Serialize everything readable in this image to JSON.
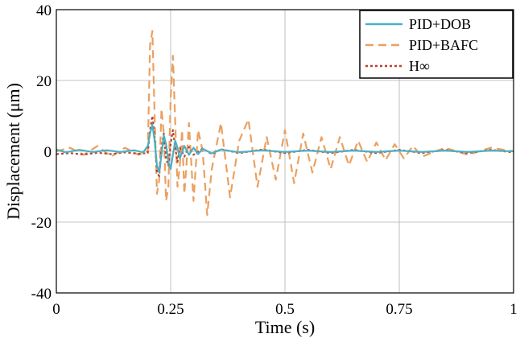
{
  "chart_data": {
    "type": "line",
    "title": "",
    "xlabel": "Time (s)",
    "ylabel": "Displacement  (μm)",
    "xlim": [
      0,
      1
    ],
    "ylim": [
      -40,
      40
    ],
    "x_ticks": [
      0,
      0.25,
      0.5,
      0.75,
      1
    ],
    "x_tick_labels": [
      "0",
      "0.25",
      "0.5",
      "0.75",
      "1"
    ],
    "y_ticks": [
      -40,
      -20,
      0,
      20,
      40
    ],
    "y_tick_labels": [
      "-40",
      "-20",
      "0",
      "20",
      "40"
    ],
    "grid": true,
    "legend_position": "top-right",
    "series": [
      {
        "name": "PID+DOB",
        "color": "#4bb0c4",
        "dash": "solid",
        "points": [
          [
            0,
            0.5
          ],
          [
            0.02,
            -0.3
          ],
          [
            0.05,
            0.4
          ],
          [
            0.08,
            -0.2
          ],
          [
            0.11,
            0.3
          ],
          [
            0.14,
            -0.2
          ],
          [
            0.17,
            0.3
          ],
          [
            0.19,
            -0.3
          ],
          [
            0.2,
            1.5
          ],
          [
            0.205,
            5
          ],
          [
            0.21,
            7.5
          ],
          [
            0.215,
            3
          ],
          [
            0.22,
            -4
          ],
          [
            0.225,
            -6
          ],
          [
            0.23,
            -1
          ],
          [
            0.235,
            4.5
          ],
          [
            0.24,
            2
          ],
          [
            0.245,
            -3
          ],
          [
            0.25,
            -5
          ],
          [
            0.255,
            -1
          ],
          [
            0.26,
            3
          ],
          [
            0.265,
            1
          ],
          [
            0.27,
            -2
          ],
          [
            0.28,
            1.5
          ],
          [
            0.29,
            -1
          ],
          [
            0.3,
            1
          ],
          [
            0.31,
            -0.8
          ],
          [
            0.32,
            0.7
          ],
          [
            0.34,
            -0.6
          ],
          [
            0.36,
            0.5
          ],
          [
            0.4,
            -0.3
          ],
          [
            0.45,
            0.3
          ],
          [
            0.5,
            -0.2
          ],
          [
            0.55,
            0.2
          ],
          [
            0.6,
            -0.2
          ],
          [
            0.65,
            0.2
          ],
          [
            0.7,
            -0.2
          ],
          [
            0.75,
            0.2
          ],
          [
            0.8,
            -0.2
          ],
          [
            0.85,
            0.2
          ],
          [
            0.9,
            -0.2
          ],
          [
            0.95,
            0.2
          ],
          [
            1,
            0
          ]
        ]
      },
      {
        "name": "PID+BAFC",
        "color": "#eba060",
        "dash": "dashed",
        "points": [
          [
            0,
            0
          ],
          [
            0.03,
            1
          ],
          [
            0.06,
            -1
          ],
          [
            0.09,
            1.5
          ],
          [
            0.12,
            -1.5
          ],
          [
            0.15,
            1
          ],
          [
            0.18,
            -1
          ],
          [
            0.2,
            0
          ],
          [
            0.205,
            30
          ],
          [
            0.21,
            34
          ],
          [
            0.215,
            10
          ],
          [
            0.22,
            -12
          ],
          [
            0.225,
            -8
          ],
          [
            0.23,
            12
          ],
          [
            0.235,
            5
          ],
          [
            0.24,
            -14
          ],
          [
            0.245,
            -10
          ],
          [
            0.25,
            15
          ],
          [
            0.255,
            27
          ],
          [
            0.26,
            8
          ],
          [
            0.265,
            -10
          ],
          [
            0.27,
            -4
          ],
          [
            0.275,
            6
          ],
          [
            0.28,
            -12
          ],
          [
            0.285,
            -3
          ],
          [
            0.29,
            8
          ],
          [
            0.3,
            -14
          ],
          [
            0.31,
            6
          ],
          [
            0.32,
            0
          ],
          [
            0.33,
            -18
          ],
          [
            0.34,
            -5
          ],
          [
            0.36,
            8
          ],
          [
            0.38,
            -13
          ],
          [
            0.4,
            3
          ],
          [
            0.42,
            9
          ],
          [
            0.44,
            -10
          ],
          [
            0.46,
            4
          ],
          [
            0.48,
            -8
          ],
          [
            0.5,
            6
          ],
          [
            0.52,
            -9
          ],
          [
            0.54,
            5
          ],
          [
            0.56,
            -6
          ],
          [
            0.58,
            4
          ],
          [
            0.6,
            -5
          ],
          [
            0.62,
            4
          ],
          [
            0.64,
            -4
          ],
          [
            0.66,
            3
          ],
          [
            0.68,
            -3
          ],
          [
            0.7,
            2.5
          ],
          [
            0.72,
            -2.5
          ],
          [
            0.74,
            2
          ],
          [
            0.76,
            -2
          ],
          [
            0.78,
            1.5
          ],
          [
            0.8,
            -1.5
          ],
          [
            0.85,
            1
          ],
          [
            0.9,
            -1
          ],
          [
            0.95,
            1
          ],
          [
            1,
            0
          ]
        ]
      },
      {
        "name": "H∞",
        "color": "#b5432f",
        "dash": "dotted",
        "points": [
          [
            0,
            -0.8
          ],
          [
            0.03,
            -0.5
          ],
          [
            0.06,
            -0.9
          ],
          [
            0.09,
            -0.4
          ],
          [
            0.12,
            -0.8
          ],
          [
            0.15,
            -0.3
          ],
          [
            0.18,
            -0.7
          ],
          [
            0.2,
            -0.5
          ],
          [
            0.205,
            6
          ],
          [
            0.21,
            10
          ],
          [
            0.215,
            4
          ],
          [
            0.22,
            -6
          ],
          [
            0.225,
            -7
          ],
          [
            0.23,
            1
          ],
          [
            0.235,
            5
          ],
          [
            0.24,
            -2
          ],
          [
            0.245,
            -4
          ],
          [
            0.25,
            2
          ],
          [
            0.255,
            6
          ],
          [
            0.26,
            1
          ],
          [
            0.265,
            -3
          ],
          [
            0.27,
            1
          ],
          [
            0.28,
            -1.5
          ],
          [
            0.29,
            1.2
          ],
          [
            0.3,
            -1
          ],
          [
            0.32,
            0.8
          ],
          [
            0.34,
            -0.8
          ],
          [
            0.36,
            0.6
          ],
          [
            0.4,
            -0.5
          ],
          [
            0.45,
            0.5
          ],
          [
            0.5,
            -0.5
          ],
          [
            0.55,
            0.4
          ],
          [
            0.6,
            -0.5
          ],
          [
            0.65,
            0.4
          ],
          [
            0.7,
            -0.5
          ],
          [
            0.75,
            0.4
          ],
          [
            0.8,
            -0.5
          ],
          [
            0.85,
            0.4
          ],
          [
            0.9,
            -0.5
          ],
          [
            0.95,
            0.4
          ],
          [
            1,
            -0.3
          ]
        ]
      }
    ]
  }
}
